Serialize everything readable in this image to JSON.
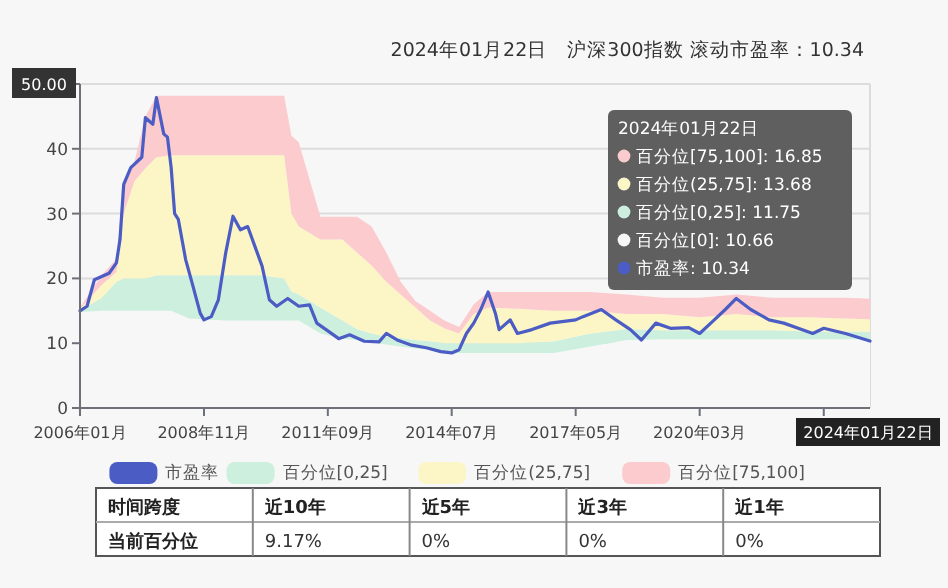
{
  "chart_data": [
    {
      "type": "line",
      "title": "2024年01月22日　沪深300指数 滚动市盈率：10.34",
      "xlim": [
        "2006-01",
        "2024-01-22"
      ],
      "xticks": [
        {
          "value": "2006-01",
          "label": "2006年01月"
        },
        {
          "value": "2008-11",
          "label": "2008年11月"
        },
        {
          "value": "2011-09",
          "label": "2011年09月"
        },
        {
          "value": "2014-07",
          "label": "2014年07月"
        },
        {
          "value": "2017-05",
          "label": "2017年05月"
        },
        {
          "value": "2020-03",
          "label": "2020年03月"
        },
        {
          "value": "2023-01",
          "label": null
        },
        {
          "value": "2024-01-22",
          "label": "2024年01月22日"
        }
      ],
      "ylim": [
        0,
        50
      ],
      "yticks": [
        0,
        10,
        20,
        30,
        40,
        {
          "value": 50,
          "label": "50.00"
        }
      ],
      "grid": "y",
      "legend": "bottom",
      "stacked": true,
      "series": [
        {
          "name": "市盈率",
          "type": "line",
          "color": "#4b5cc4",
          "x": [
            "2006-01",
            "2006-03",
            "2006-05",
            "2006-07",
            "2006-09",
            "2006-11",
            "2006-12",
            "2007-01",
            "2007-03",
            "2007-06",
            "2007-07",
            "2007-09",
            "2007-10",
            "2007-12",
            "2008-01",
            "2008-02",
            "2008-03",
            "2008-04",
            "2008-06",
            "2008-08",
            "2008-10",
            "2008-11",
            "2009-01",
            "2009-03",
            "2009-05",
            "2009-07",
            "2009-09",
            "2009-11",
            "2010-01",
            "2010-03",
            "2010-05",
            "2010-07",
            "2010-10",
            "2011-01",
            "2011-04",
            "2011-06",
            "2011-09",
            "2011-12",
            "2012-03",
            "2012-07",
            "2012-11",
            "2013-01",
            "2013-04",
            "2013-08",
            "2013-12",
            "2014-04",
            "2014-07",
            "2014-09",
            "2014-11",
            "2015-01",
            "2015-03",
            "2015-05",
            "2015-07",
            "2015-08",
            "2015-11",
            "2016-01",
            "2016-05",
            "2016-10",
            "2017-05",
            "2017-07",
            "2017-12",
            "2018-04",
            "2018-08",
            "2018-11",
            "2019-03",
            "2019-07",
            "2019-12",
            "2020-03",
            "2020-07",
            "2020-10",
            "2021-01",
            "2021-05",
            "2021-10",
            "2022-02",
            "2022-07",
            "2022-10",
            "2023-01",
            "2023-07",
            "2024-01-22"
          ],
          "values": [
            15.0,
            15.7,
            19.8,
            20.3,
            20.8,
            22.4,
            26,
            34.5,
            37.1,
            38.7,
            44.8,
            43.8,
            47.9,
            42.3,
            41.8,
            37.1,
            30,
            29.1,
            22.9,
            18.8,
            14.6,
            13.6,
            14.1,
            16.7,
            23.9,
            29.6,
            27.5,
            28,
            24.9,
            21.9,
            16.7,
            15.7,
            16.9,
            15.7,
            15.9,
            13.1,
            11.9,
            10.7,
            11.3,
            10.3,
            10.2,
            11.5,
            10.5,
            9.7,
            9.3,
            8.7,
            8.5,
            9.0,
            11.5,
            13.1,
            15.2,
            17.9,
            14.6,
            12.1,
            13.6,
            11.5,
            12.1,
            13.1,
            13.6,
            14.1,
            15.2,
            13.6,
            12.1,
            10.5,
            13.1,
            12.3,
            12.4,
            11.5,
            13.6,
            15.2,
            16.9,
            15.2,
            13.6,
            13.1,
            12.1,
            11.5,
            12.3,
            11.5,
            10.34
          ]
        },
        {
          "type": "area",
          "color": "#f7f7f7",
          "x": [
            "2006-01",
            "2006-07",
            "2006-11",
            "2007-01",
            "2007-04",
            "2007-07",
            "2007-10",
            "2008-02",
            "2008-07",
            "2009-05",
            "2010-03",
            "2010-09",
            "2010-11",
            "2011-01",
            "2011-07",
            "2012-01",
            "2012-05",
            "2012-09",
            "2013-01",
            "2013-05",
            "2013-09",
            "2014-01",
            "2014-05",
            "2014-09",
            "2015-01",
            "2015-05",
            "2016-01",
            "2016-11",
            "2017-09",
            "2018-07",
            "2019-05",
            "2020-03",
            "2021-01",
            "2021-11",
            "2022-09",
            "2023-07",
            "2024-01-22"
          ],
          "values": [
            14.8,
            15,
            15,
            15,
            15,
            15,
            15,
            15,
            13.8,
            13.5,
            13.5,
            13.5,
            13.5,
            13.5,
            11.5,
            10.7,
            10.5,
            10.2,
            9.8,
            9.5,
            9.2,
            9,
            8.5,
            8.5,
            8.5,
            8.5,
            8.5,
            8.5,
            9.5,
            10.5,
            10.6,
            10.6,
            10.6,
            10.6,
            10.6,
            10.6,
            10.66
          ]
        },
        {
          "name": "百分位[0,25]",
          "type": "area",
          "color": "#cdf0de",
          "x": [
            "2006-01",
            "2006-07",
            "2006-11",
            "2007-01",
            "2007-04",
            "2007-07",
            "2007-10",
            "2008-02",
            "2008-07",
            "2009-05",
            "2010-03",
            "2010-09",
            "2010-11",
            "2011-01",
            "2011-07",
            "2012-01",
            "2012-05",
            "2012-09",
            "2013-01",
            "2013-05",
            "2013-09",
            "2014-01",
            "2014-05",
            "2014-09",
            "2015-01",
            "2015-05",
            "2016-01",
            "2016-11",
            "2017-09",
            "2018-07",
            "2019-05",
            "2020-03",
            "2021-01",
            "2021-11",
            "2022-09",
            "2023-07",
            "2024-01-22"
          ],
          "values": [
            0.2,
            2,
            4.5,
            5,
            5,
            5,
            5.5,
            5.5,
            6.7,
            7,
            7,
            6.5,
            4.5,
            4,
            4,
            2.8,
            1.7,
            1.3,
            1.2,
            1.3,
            1.3,
            1.3,
            1.5,
            1.5,
            1.5,
            1.5,
            1.5,
            1.8,
            2,
            1.7,
            1.4,
            1.4,
            1.4,
            1.4,
            1.2,
            1.2,
            1.09
          ]
        },
        {
          "name": "百分位(25,75]",
          "type": "area",
          "color": "#fcf6c6",
          "x": [
            "2006-01",
            "2006-07",
            "2006-11",
            "2007-01",
            "2007-04",
            "2007-07",
            "2007-10",
            "2008-02",
            "2008-07",
            "2009-05",
            "2010-03",
            "2010-09",
            "2010-11",
            "2011-01",
            "2011-07",
            "2012-01",
            "2012-05",
            "2012-09",
            "2013-01",
            "2013-05",
            "2013-09",
            "2014-01",
            "2014-05",
            "2014-09",
            "2015-01",
            "2015-05",
            "2016-01",
            "2016-11",
            "2017-09",
            "2018-07",
            "2019-05",
            "2020-03",
            "2021-01",
            "2021-11",
            "2022-09",
            "2023-07",
            "2024-01-22"
          ],
          "values": [
            0.3,
            2,
            1.5,
            10,
            15,
            17,
            18.2,
            18.5,
            18.5,
            18.5,
            18.5,
            19,
            12,
            10.5,
            10.5,
            12.5,
            11.8,
            10.5,
            8.5,
            6.7,
            5,
            3.2,
            2.3,
            1.5,
            4.5,
            5.5,
            5.3,
            4.7,
            3.5,
            2.3,
            2.5,
            2,
            2.5,
            2,
            2.2,
            2,
            1.93
          ]
        },
        {
          "name": "百分位[75,100]",
          "type": "area",
          "color": "#fccbce",
          "x": [
            "2006-01",
            "2006-07",
            "2006-11",
            "2007-01",
            "2007-04",
            "2007-07",
            "2007-10",
            "2008-02",
            "2008-07",
            "2009-05",
            "2010-03",
            "2010-09",
            "2010-11",
            "2011-01",
            "2011-07",
            "2012-01",
            "2012-05",
            "2012-09",
            "2013-01",
            "2013-05",
            "2013-09",
            "2014-01",
            "2014-05",
            "2014-09",
            "2015-01",
            "2015-05",
            "2016-01",
            "2016-11",
            "2017-09",
            "2018-07",
            "2019-05",
            "2020-03",
            "2021-01",
            "2021-11",
            "2022-09",
            "2023-07",
            "2024-01-22"
          ],
          "values": [
            0.2,
            1.5,
            2,
            5,
            3,
            8,
            9.5,
            9.2,
            9.2,
            9.2,
            9.2,
            9.2,
            12,
            13,
            3.5,
            3.5,
            5.5,
            6,
            4.5,
            2,
            1,
            1.5,
            1.2,
            1,
            1.5,
            2.4,
            2.6,
            2.9,
            2.9,
            3,
            2.5,
            3,
            3,
            3,
            3,
            3.2,
            3.17
          ]
        }
      ],
      "annotations": [
        "2024年01月22日",
        "百分位[75,100]: 16.85",
        "百分位(25,75]: 13.68",
        "百分位[0,25]: 11.75",
        "百分位[0]: 10.66",
        "市盈率: 10.34"
      ]
    },
    {
      "type": "other",
      "xlabel": "时间跨度",
      "ylabel": "当前百分位",
      "categories": [
        "近10年",
        "近5年",
        "近3年",
        "近1年"
      ],
      "values": [
        9.17,
        0,
        0,
        0
      ],
      "value_labels": [
        "9.17%",
        "0%",
        "0%",
        "0%"
      ]
    }
  ]
}
